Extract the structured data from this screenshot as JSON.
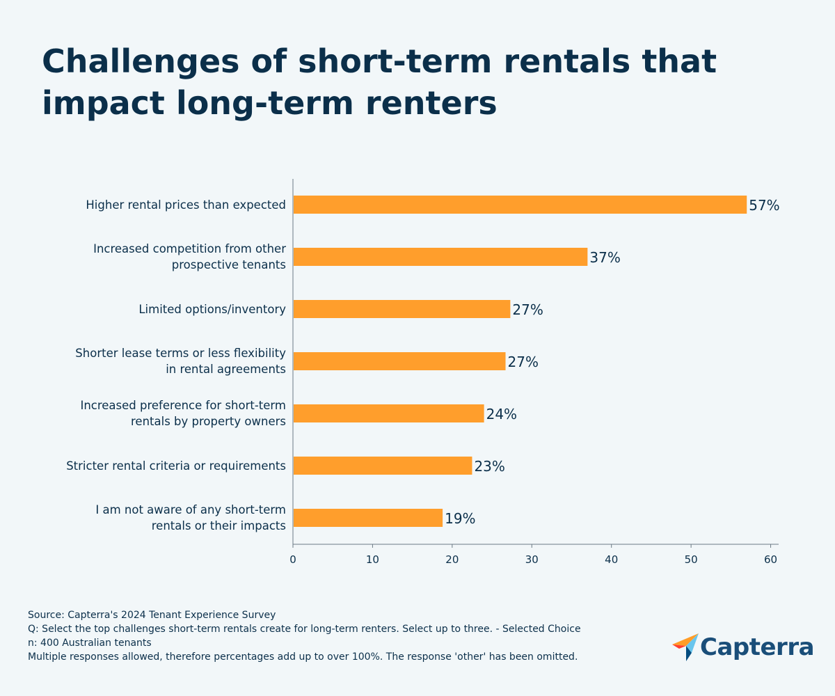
{
  "page": {
    "title": "Challenges of short-term rentals that impact long-term renters"
  },
  "chart_data": {
    "type": "bar",
    "orientation": "horizontal",
    "categories": [
      "Higher rental prices than expected",
      "Increased competition from other prospective tenants",
      "Limited options/inventory",
      "Shorter lease terms or less flexibility in rental agreements",
      "Increased preference for short-term rentals by property owners",
      "Stricter rental criteria or requirements",
      "I am not aware of any short-term rentals or their impacts"
    ],
    "category_lines": [
      [
        "Higher rental prices than expected"
      ],
      [
        "Increased competition from other",
        "prospective tenants"
      ],
      [
        "Limited options/inventory"
      ],
      [
        "Shorter lease terms or less flexibility",
        "in rental agreements"
      ],
      [
        "Increased preference for short-term",
        "rentals by property owners"
      ],
      [
        "Stricter rental criteria or requirements"
      ],
      [
        "I am not aware of any short-term",
        "rentals or their impacts"
      ]
    ],
    "values": [
      57,
      37,
      27.3,
      26.7,
      24,
      22.5,
      18.8
    ],
    "data_labels": [
      "57%",
      "37%",
      "27%",
      "27%",
      "24%",
      "23%",
      "19%"
    ],
    "xlim": [
      0,
      61
    ],
    "xticks": [
      0,
      10,
      20,
      30,
      40,
      50,
      60
    ],
    "bar_color": "#ff9e2c",
    "axis_color": "#6b7a85",
    "grid": false,
    "legend": "none"
  },
  "footer": {
    "source": "Source: Capterra's 2024 Tenant Experience Survey",
    "question": "Q: Select the top challenges short-term rentals create for long-term renters. Select up to three. - Selected Choice",
    "sample": "n: 400 Australian tenants",
    "note": "Multiple responses allowed, therefore percentages add up to over 100%. The response 'other' has been omitted."
  },
  "brand": {
    "name": "Capterra",
    "logo_icon": "capterra-arrow-icon",
    "colors": {
      "orange": "#ff9d28",
      "blue": "#044d80",
      "light_blue": "#68c5ed",
      "red": "#ff3d2e"
    }
  }
}
